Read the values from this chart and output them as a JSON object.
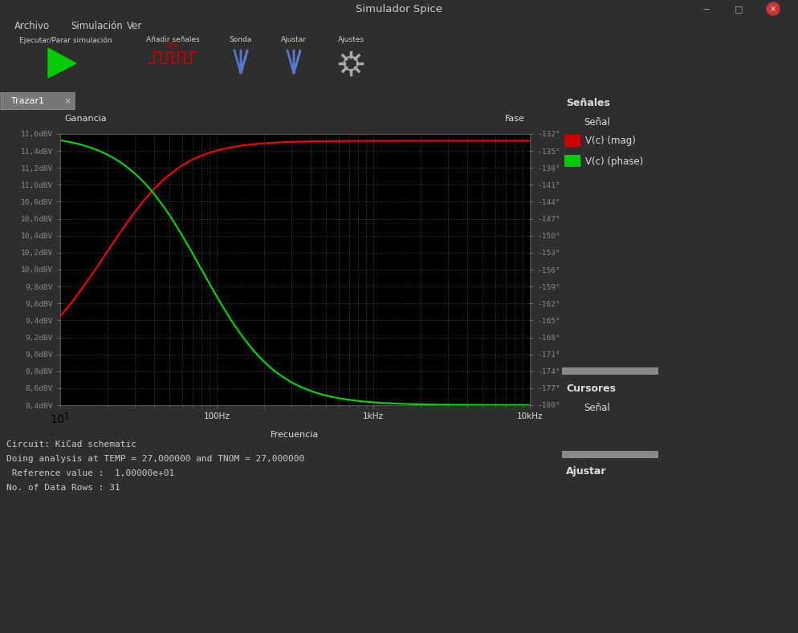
{
  "title": "Simulador Spice",
  "bg_color": "#2e2e2e",
  "plot_bg_color": "#000000",
  "panel_bg_color": "#3c3c3c",
  "titlebar_color": "#3a3a3a",
  "text_color": "#ffffff",
  "menu_items": [
    "Archivo",
    "Simulación",
    "Ver"
  ],
  "toolbar_items": [
    "Ejecutar/Parar simulación",
    "Añadir señales",
    "Sonda",
    "Ajustar",
    "Ajustes"
  ],
  "tab_label": "Trazar1",
  "left_ylabel": "Ganancia",
  "right_ylabel": "Fase",
  "xlabel": "Frecuencia",
  "left_yticks": [
    8.4,
    8.6,
    8.8,
    9.0,
    9.2,
    9.4,
    9.6,
    9.8,
    10.0,
    10.2,
    10.4,
    10.6,
    10.8,
    11.0,
    11.2,
    11.4,
    11.6
  ],
  "left_ytick_labels": [
    "8,4dBV",
    "8,6dBV",
    "8,8dBV",
    "9,0dBV",
    "9,2dBV",
    "9,4dBV",
    "9,6dBV",
    "9,8dBV",
    "10,0dBV",
    "10,2dBV",
    "10,4dBV",
    "10,6dBV",
    "10,8dBV",
    "11,0dBV",
    "11,2dBV",
    "11,4dBV",
    "11,6dBV"
  ],
  "right_yticks": [
    -132,
    -135,
    -138,
    -141,
    -144,
    -147,
    -150,
    -153,
    -156,
    -159,
    -162,
    -165,
    -168,
    -171,
    -174,
    -177,
    -180
  ],
  "right_ytick_labels": [
    "-132°",
    "-135°",
    "-138°",
    "-141°",
    "-144°",
    "-147°",
    "-150°",
    "-153°",
    "-156°",
    "-159°",
    "-162°",
    "-165°",
    "-168°",
    "-171°",
    "-174°",
    "-177°",
    "-180°"
  ],
  "red_line_color": "#ff0000",
  "green_line_color": "#00dd00",
  "grid_color": "#333333",
  "signal_panel_title": "Señales",
  "signal_col_header": "Señal",
  "signal1_label": "V(c) (mag)",
  "signal2_label": "V(c) (phase)",
  "cursors_label": "Cursores",
  "cursors_col": "Señal",
  "ajustar_label": "Ajustar",
  "console_lines": [
    "Circuit: KiCad schematic",
    "Doing analysis at TEMP = 27,000000 and TNOM = 27,000000",
    " Reference value :  1,00000e+01",
    "No. of Data Rows : 31"
  ]
}
